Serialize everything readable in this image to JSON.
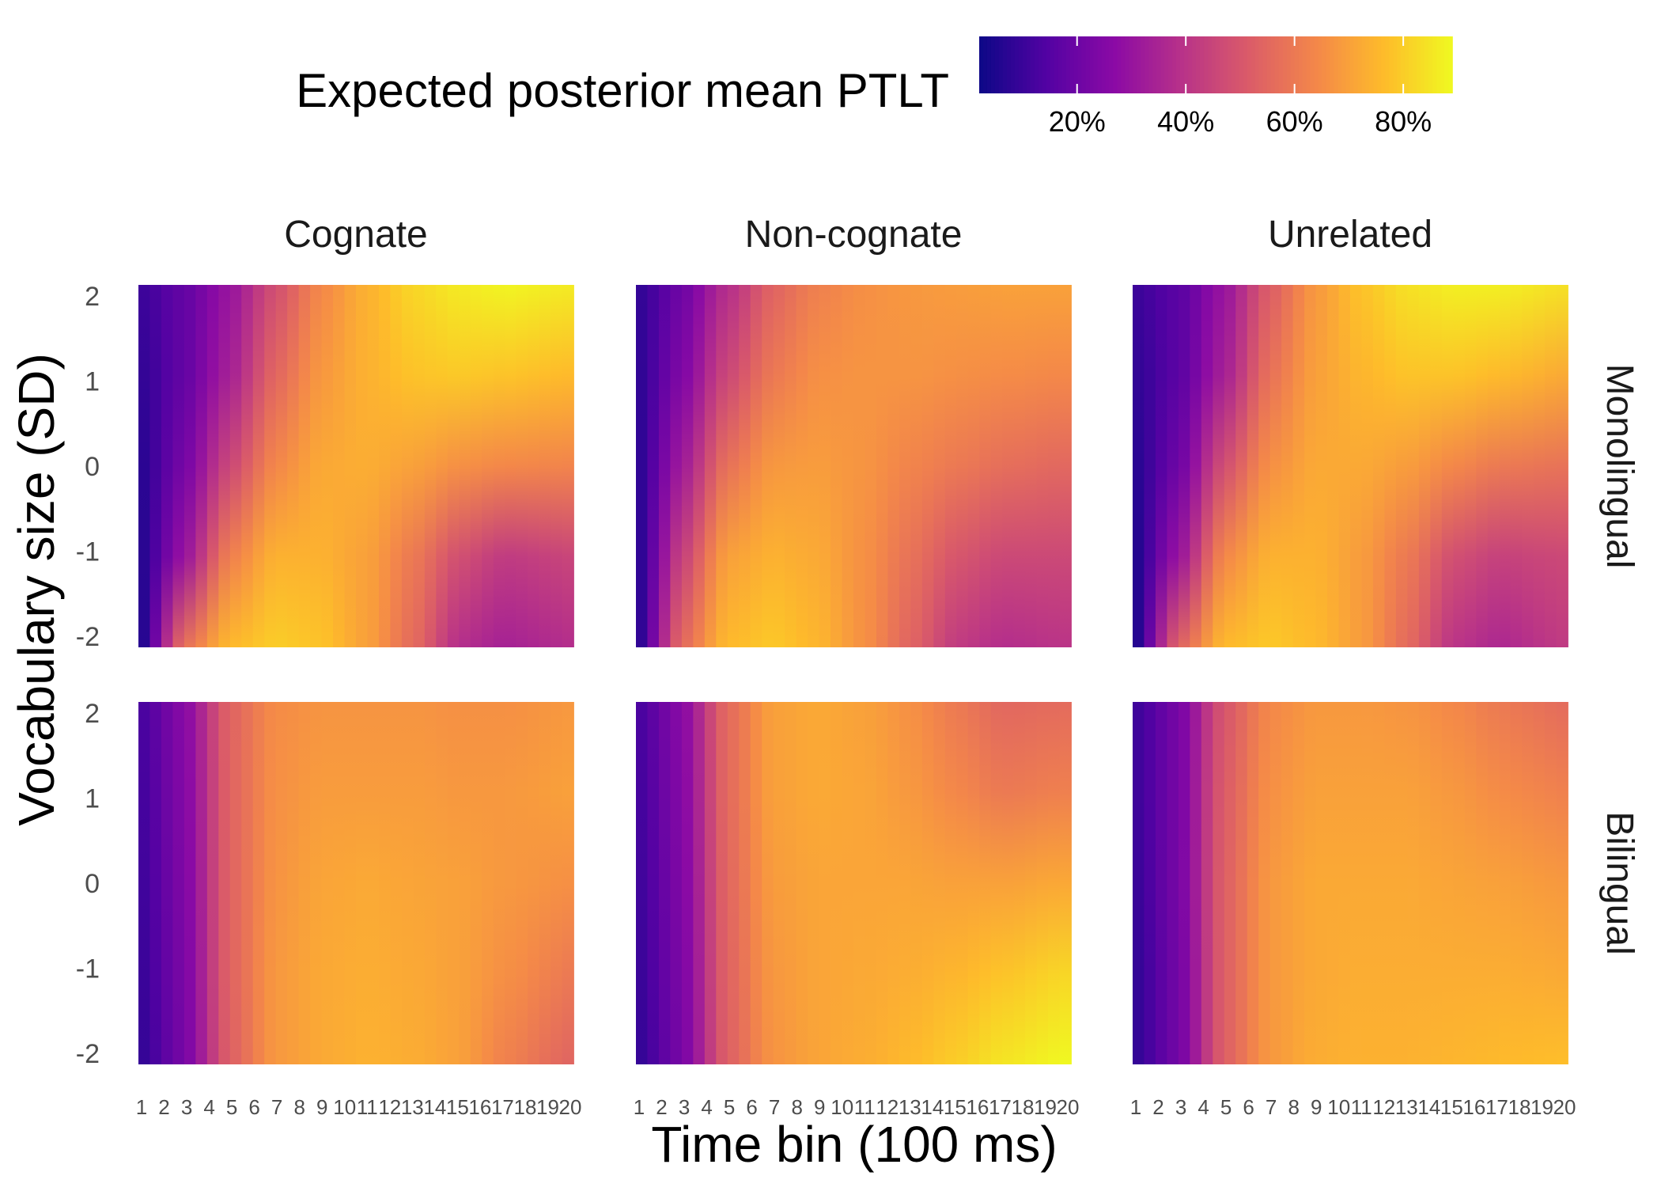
{
  "chart_data": {
    "type": "heatmap",
    "title": "",
    "xlabel": "Time bin (100 ms)",
    "ylabel": "Vocabulary size (SD)",
    "x_ticks": [
      "1",
      "2",
      "3",
      "4",
      "5",
      "6",
      "7",
      "8",
      "9",
      "10",
      "11",
      "12",
      "13",
      "14",
      "15",
      "16",
      "17",
      "18",
      "19",
      "20"
    ],
    "y_ticks": [
      "2",
      "1",
      "0",
      "-1",
      "-2"
    ],
    "xlim": [
      1,
      20
    ],
    "ylim": [
      -2,
      2
    ],
    "columns": [
      "Cognate",
      "Non-cognate",
      "Unrelated"
    ],
    "rows": [
      "Monolingual",
      "Bilingual"
    ],
    "legend": {
      "title": "Expected posterior mean PTLT",
      "position": "top",
      "tick_labels": [
        "20%",
        "40%",
        "60%",
        "80%"
      ],
      "tick_values": [
        0.2,
        0.4,
        0.6,
        0.8
      ],
      "range": [
        0.02,
        0.89
      ],
      "colormap": "plasma",
      "colors": [
        "#0d0887",
        "#5302a3",
        "#8b0aa5",
        "#b83289",
        "#db5c68",
        "#f48849",
        "#febc2a",
        "#f0f921"
      ]
    },
    "panels": [
      {
        "column": "Cognate",
        "row": "Monolingual",
        "y_values": [
          2,
          1,
          0,
          -1,
          -2
        ],
        "time_bins": [
          1,
          3,
          5,
          7,
          9,
          11,
          13,
          15,
          17,
          20
        ],
        "values": [
          [
            0.1,
            0.18,
            0.3,
            0.48,
            0.64,
            0.74,
            0.82,
            0.86,
            0.88,
            0.86
          ],
          [
            0.08,
            0.18,
            0.34,
            0.55,
            0.68,
            0.74,
            0.78,
            0.79,
            0.78,
            0.76
          ],
          [
            0.06,
            0.22,
            0.46,
            0.64,
            0.72,
            0.73,
            0.7,
            0.66,
            0.64,
            0.63
          ],
          [
            0.05,
            0.3,
            0.62,
            0.74,
            0.74,
            0.7,
            0.6,
            0.48,
            0.42,
            0.45
          ],
          [
            0.02,
            0.58,
            0.76,
            0.8,
            0.78,
            0.7,
            0.56,
            0.38,
            0.34,
            0.38
          ]
        ]
      },
      {
        "column": "Non-cognate",
        "row": "Monolingual",
        "y_values": [
          2,
          1,
          0,
          -1,
          -2
        ],
        "time_bins": [
          1,
          3,
          5,
          7,
          9,
          11,
          13,
          15,
          17,
          20
        ],
        "values": [
          [
            0.08,
            0.2,
            0.38,
            0.54,
            0.62,
            0.66,
            0.68,
            0.69,
            0.7,
            0.7
          ],
          [
            0.07,
            0.24,
            0.46,
            0.6,
            0.66,
            0.67,
            0.67,
            0.66,
            0.65,
            0.64
          ],
          [
            0.06,
            0.32,
            0.58,
            0.68,
            0.69,
            0.67,
            0.63,
            0.6,
            0.57,
            0.55
          ],
          [
            0.05,
            0.44,
            0.7,
            0.74,
            0.72,
            0.66,
            0.58,
            0.5,
            0.46,
            0.46
          ],
          [
            0.04,
            0.56,
            0.76,
            0.79,
            0.75,
            0.66,
            0.54,
            0.42,
            0.38,
            0.4
          ]
        ]
      },
      {
        "column": "Unrelated",
        "row": "Monolingual",
        "y_values": [
          2,
          1,
          0,
          -1,
          -2
        ],
        "time_bins": [
          1,
          3,
          5,
          7,
          9,
          11,
          13,
          15,
          17,
          20
        ],
        "values": [
          [
            0.1,
            0.16,
            0.3,
            0.52,
            0.68,
            0.78,
            0.84,
            0.87,
            0.87,
            0.84
          ],
          [
            0.08,
            0.16,
            0.34,
            0.58,
            0.7,
            0.75,
            0.78,
            0.78,
            0.76,
            0.72
          ],
          [
            0.06,
            0.2,
            0.48,
            0.66,
            0.72,
            0.72,
            0.69,
            0.64,
            0.6,
            0.58
          ],
          [
            0.04,
            0.3,
            0.64,
            0.74,
            0.74,
            0.69,
            0.6,
            0.48,
            0.44,
            0.46
          ],
          [
            0.02,
            0.54,
            0.76,
            0.79,
            0.76,
            0.69,
            0.56,
            0.4,
            0.36,
            0.42
          ]
        ]
      },
      {
        "column": "Cognate",
        "row": "Bilingual",
        "y_values": [
          2,
          1,
          0,
          -1,
          -2
        ],
        "time_bins": [
          1,
          3,
          5,
          7,
          9,
          11,
          13,
          15,
          17,
          20
        ],
        "values": [
          [
            0.12,
            0.26,
            0.54,
            0.65,
            0.67,
            0.67,
            0.67,
            0.66,
            0.66,
            0.68
          ],
          [
            0.11,
            0.25,
            0.54,
            0.66,
            0.69,
            0.69,
            0.69,
            0.68,
            0.68,
            0.7
          ],
          [
            0.1,
            0.24,
            0.54,
            0.67,
            0.71,
            0.72,
            0.71,
            0.7,
            0.68,
            0.66
          ],
          [
            0.09,
            0.23,
            0.54,
            0.68,
            0.72,
            0.73,
            0.72,
            0.7,
            0.66,
            0.6
          ],
          [
            0.08,
            0.22,
            0.53,
            0.68,
            0.72,
            0.74,
            0.73,
            0.7,
            0.62,
            0.54
          ]
        ]
      },
      {
        "column": "Non-cognate",
        "row": "Bilingual",
        "y_values": [
          2,
          1,
          0,
          -1,
          -2
        ],
        "time_bins": [
          1,
          3,
          5,
          7,
          9,
          11,
          13,
          15,
          17,
          20
        ],
        "values": [
          [
            0.12,
            0.26,
            0.56,
            0.7,
            0.72,
            0.7,
            0.66,
            0.6,
            0.55,
            0.56
          ],
          [
            0.11,
            0.25,
            0.56,
            0.7,
            0.72,
            0.71,
            0.68,
            0.64,
            0.6,
            0.62
          ],
          [
            0.1,
            0.24,
            0.55,
            0.69,
            0.71,
            0.71,
            0.71,
            0.7,
            0.7,
            0.72
          ],
          [
            0.09,
            0.23,
            0.54,
            0.68,
            0.71,
            0.72,
            0.73,
            0.75,
            0.78,
            0.82
          ],
          [
            0.08,
            0.22,
            0.53,
            0.67,
            0.71,
            0.73,
            0.76,
            0.8,
            0.85,
            0.89
          ]
        ]
      },
      {
        "column": "Unrelated",
        "row": "Bilingual",
        "y_values": [
          2,
          1,
          0,
          -1,
          -2
        ],
        "time_bins": [
          1,
          3,
          5,
          7,
          9,
          11,
          13,
          15,
          17,
          20
        ],
        "values": [
          [
            0.1,
            0.22,
            0.5,
            0.64,
            0.68,
            0.68,
            0.67,
            0.64,
            0.6,
            0.56
          ],
          [
            0.1,
            0.22,
            0.52,
            0.66,
            0.7,
            0.7,
            0.7,
            0.68,
            0.65,
            0.62
          ],
          [
            0.09,
            0.22,
            0.53,
            0.68,
            0.72,
            0.72,
            0.72,
            0.71,
            0.7,
            0.68
          ],
          [
            0.08,
            0.21,
            0.53,
            0.68,
            0.72,
            0.73,
            0.73,
            0.73,
            0.73,
            0.72
          ],
          [
            0.08,
            0.21,
            0.53,
            0.68,
            0.73,
            0.74,
            0.74,
            0.75,
            0.76,
            0.77
          ]
        ]
      }
    ]
  }
}
